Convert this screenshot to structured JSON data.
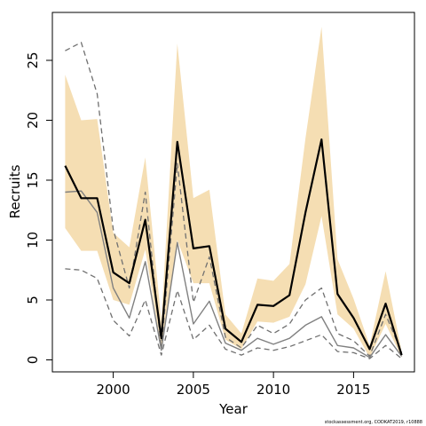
{
  "chart_data": {
    "type": "line",
    "title": "",
    "xlabel": "Year",
    "ylabel": "Recruits",
    "credit": "stockassessment.org, CODKAT2019, r10888",
    "xlim": [
      1996.2,
      2018.8
    ],
    "ylim": [
      -1.0,
      29.0
    ],
    "x_ticks": [
      2000,
      2005,
      2010,
      2015
    ],
    "y_ticks": [
      0,
      5,
      10,
      15,
      20,
      25
    ],
    "x": [
      1997,
      1998,
      1999,
      2000,
      2001,
      2002,
      2003,
      2004,
      2005,
      2006,
      2007,
      2008,
      2009,
      2010,
      2011,
      2012,
      2013,
      2014,
      2015,
      2016,
      2017,
      2018
    ],
    "grid": false,
    "legend": "none",
    "series": [
      {
        "role": "confidence band",
        "color": "#f5deb3",
        "lower": [
          11.0,
          9.1,
          9.1,
          5.0,
          4.6,
          9.2,
          0.9,
          10.0,
          6.4,
          6.4,
          1.7,
          0.9,
          3.2,
          3.1,
          3.6,
          6.3,
          12.0,
          3.8,
          2.6,
          0.2,
          3.0,
          0.2
        ],
        "upper": [
          23.8,
          20.0,
          20.1,
          10.6,
          9.4,
          16.9,
          3.2,
          26.4,
          13.5,
          14.2,
          3.8,
          2.2,
          6.8,
          6.6,
          8.0,
          18.5,
          27.8,
          8.4,
          5.1,
          1.2,
          7.4,
          0.7
        ]
      },
      {
        "role": "estimate",
        "color": "#000000",
        "values": [
          16.2,
          13.5,
          13.5,
          7.3,
          6.4,
          11.7,
          1.8,
          18.2,
          9.3,
          9.5,
          2.6,
          1.5,
          4.6,
          4.5,
          5.4,
          12.3,
          18.4,
          5.5,
          3.5,
          0.9,
          4.7,
          0.4
        ]
      },
      {
        "role": "comparison estimate",
        "color": "#808080",
        "values": [
          14.0,
          14.1,
          12.3,
          6.0,
          3.5,
          8.2,
          0.8,
          9.8,
          3.0,
          4.9,
          1.4,
          0.8,
          1.8,
          1.3,
          1.8,
          2.9,
          3.6,
          1.2,
          1.0,
          0.2,
          2.1,
          0.3
        ]
      },
      {
        "role": "comparison upper bound",
        "color": "#707070",
        "values": [
          25.8,
          26.5,
          22.2,
          10.9,
          6.0,
          14.0,
          0.9,
          16.4,
          4.8,
          8.6,
          1.9,
          1.0,
          2.9,
          2.2,
          3.0,
          5.0,
          6.0,
          2.2,
          1.6,
          0.3,
          3.8,
          0.6
        ]
      },
      {
        "role": "comparison lower bound",
        "color": "#707070",
        "values": [
          7.6,
          7.5,
          6.8,
          3.3,
          2.0,
          5.0,
          0.4,
          5.8,
          1.7,
          2.9,
          0.9,
          0.4,
          1.0,
          0.8,
          1.1,
          1.6,
          2.1,
          0.7,
          0.6,
          0.1,
          1.2,
          0.1
        ]
      }
    ]
  }
}
